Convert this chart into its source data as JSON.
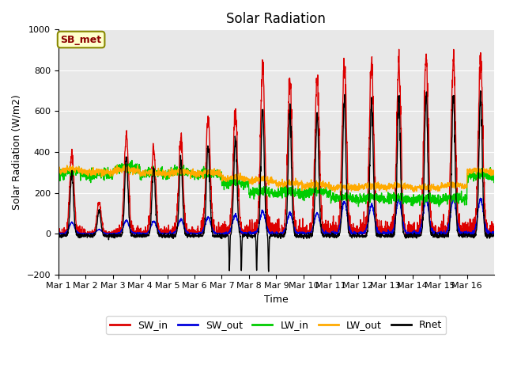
{
  "title": "Solar Radiation",
  "ylabel": "Solar Radiation (W/m2)",
  "xlabel": "Time",
  "station_label": "SB_met",
  "ylim": [
    -200,
    1000
  ],
  "yticks": [
    -200,
    0,
    200,
    400,
    600,
    800,
    1000
  ],
  "plot_bg": "#e8e8e8",
  "fig_bg": "#ffffff",
  "colors": {
    "SW_in": "#dd0000",
    "SW_out": "#0000dd",
    "LW_in": "#00cc00",
    "LW_out": "#ffaa00",
    "Rnet": "#000000"
  },
  "xtick_labels": [
    "Mar 1",
    "Mar 2",
    "Mar 3",
    "Mar 4",
    "Mar 5",
    "Mar 6",
    "Mar 7",
    "Mar 8",
    "Mar 9",
    "Mar 10",
    "Mar 11",
    "Mar 12",
    "Mar 13",
    "Mar 14",
    "Mar 15",
    "Mar 16"
  ],
  "num_days": 16,
  "pts_per_day": 144,
  "sw_in_peaks": [
    390,
    150,
    480,
    420,
    470,
    570,
    600,
    810,
    750,
    760,
    830,
    830,
    840,
    860,
    860,
    860
  ],
  "sw_out_peaks": [
    55,
    20,
    65,
    60,
    70,
    80,
    90,
    110,
    100,
    100,
    160,
    140,
    170,
    170,
    170,
    170
  ],
  "lw_in_base": [
    290,
    280,
    310,
    285,
    290,
    285,
    240,
    195,
    195,
    195,
    165,
    165,
    165,
    160,
    165,
    275
  ],
  "lw_out_base": [
    305,
    295,
    305,
    290,
    295,
    290,
    265,
    255,
    240,
    230,
    220,
    225,
    225,
    220,
    230,
    300
  ],
  "lw_in_drop_days": [
    7,
    8,
    9,
    10,
    11,
    12,
    13,
    14
  ],
  "lw_out_drop_days": [
    6,
    7,
    8,
    9,
    10,
    11,
    12,
    13,
    14
  ],
  "rnet_neg_days": [
    6,
    7
  ],
  "rnet_neg_val": -170,
  "grid_color": "#ffffff",
  "label_fontsize": 9,
  "tick_fontsize": 8,
  "title_fontsize": 12,
  "line_width": 1.0
}
